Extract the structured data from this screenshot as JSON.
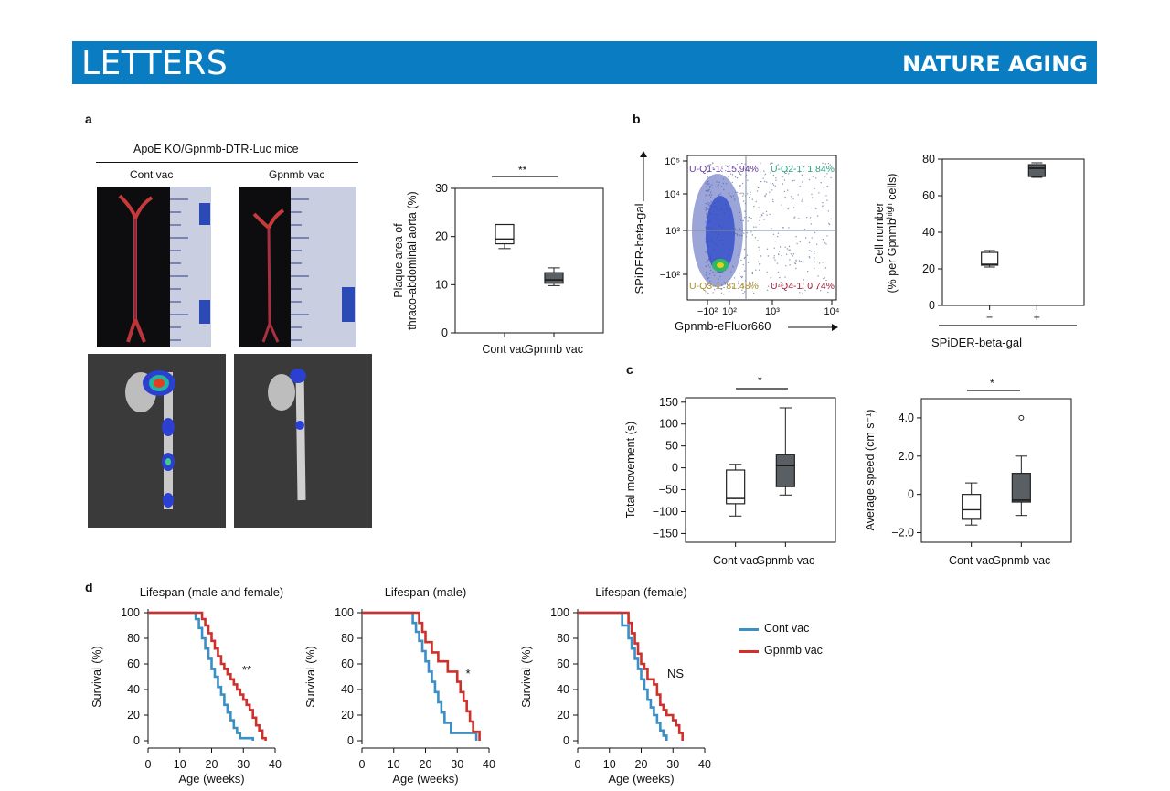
{
  "header": {
    "section": "LETTERS",
    "journal": "NATURE AGING"
  },
  "colors": {
    "banner": "#0a7cc1",
    "cont": "#3a8fc7",
    "gpnmb": "#d0302b"
  },
  "panel_a": {
    "label": "a",
    "mouse_line": "ApoE KO/Gpnmb-DTR-Luc mice",
    "col1": "Cont vac",
    "col2": "Gpnmb vac"
  },
  "panel_b": {
    "label": "b"
  },
  "panel_c": {
    "label": "c"
  },
  "panel_d": {
    "label": "d"
  },
  "chart_data": [
    {
      "id": "plaque",
      "type": "box",
      "ylabel_line1": "Plaque area of",
      "ylabel_line2": "thraco-abdominal aorta (%)",
      "ylim": [
        0,
        30
      ],
      "yticks": [
        0,
        10,
        20,
        30
      ],
      "categories": [
        "Cont vac",
        "Gpnmb vac"
      ],
      "boxes": [
        {
          "min": 17.5,
          "q1": 18.5,
          "median": 19.5,
          "q3": 22.5,
          "max": 22.5,
          "fill": "#ffffff"
        },
        {
          "min": 9.8,
          "q1": 10.3,
          "median": 11.0,
          "q3": 12.5,
          "max": 13.5,
          "fill": "#5a5f64"
        }
      ],
      "significance": "**"
    },
    {
      "id": "flow",
      "type": "scatter",
      "xlabel": "Gpnmb-eFluor660",
      "ylabel": "SPiDER-beta-gal",
      "xticks": [
        "−10²",
        "10²",
        "10³",
        "10⁴"
      ],
      "yticks": [
        "−10²",
        "10³",
        "10⁴",
        "10⁵"
      ],
      "quadrants": [
        {
          "name": "U-Q1-1",
          "value": "15.94%",
          "label": "U-Q1-1: 15.94%",
          "color": "#6a3fa0"
        },
        {
          "name": "U-Q2-1",
          "value": "1.84%",
          "label": "U-Q2-1: 1.84%",
          "color": "#2e9e7a"
        },
        {
          "name": "U-Q3-1",
          "value": "81.48%",
          "label": "U-Q3-1: 81.48%",
          "color": "#b0902a"
        },
        {
          "name": "U-Q4-1",
          "value": "0.74%",
          "label": "U-Q4-1: 0.74%",
          "color": "#a0203a"
        }
      ]
    },
    {
      "id": "cellnumber",
      "type": "box",
      "ylabel_line1": "Cell number",
      "ylabel_line2": "(% per Gpnmb",
      "ylabel_sup": "high",
      "ylabel_line2_end": " cells)",
      "ylim": [
        0,
        80
      ],
      "yticks": [
        0,
        20,
        40,
        60,
        80
      ],
      "categories": [
        "−",
        "+"
      ],
      "xlabel": "SPiDER-beta-gal",
      "boxes": [
        {
          "min": 21,
          "q1": 22,
          "median": 22.5,
          "q3": 29,
          "max": 30,
          "fill": "#ffffff"
        },
        {
          "min": 70,
          "q1": 70.5,
          "median": 75,
          "q3": 77,
          "max": 78,
          "fill": "#5a5f64"
        }
      ]
    },
    {
      "id": "movement",
      "type": "box",
      "ylabel": "Total movement (s)",
      "ylim": [
        -170,
        160
      ],
      "yticks": [
        -150,
        -100,
        -50,
        0,
        50,
        100,
        150
      ],
      "categories": [
        "Cont vac",
        "Gpnmb vac"
      ],
      "boxes": [
        {
          "min": -110,
          "q1": -82,
          "median": -70,
          "q3": -5,
          "max": 8,
          "fill": "#ffffff"
        },
        {
          "min": -62,
          "q1": -43,
          "median": 5,
          "q3": 30,
          "max": 137,
          "fill": "#5a5f64"
        }
      ],
      "significance": "*"
    },
    {
      "id": "speed",
      "type": "box",
      "ylabel": "Average speed (cm s⁻¹)",
      "ylim": [
        -2.5,
        5.0
      ],
      "yticks": [
        -2.0,
        0,
        2.0,
        4.0
      ],
      "ytick_labels": [
        "−2.0",
        "0",
        "2.0",
        "4.0"
      ],
      "categories": [
        "Cont vac",
        "Gpnmb vac"
      ],
      "boxes": [
        {
          "min": -1.6,
          "q1": -1.3,
          "median": -0.8,
          "q3": 0.0,
          "max": 0.6,
          "fill": "#ffffff"
        },
        {
          "min": -1.1,
          "q1": -0.4,
          "median": -0.3,
          "q3": 1.1,
          "max": 2.0,
          "outlier": 4.0,
          "fill": "#5a5f64"
        }
      ],
      "significance": "*"
    },
    {
      "id": "lifespan_all",
      "type": "line",
      "title": "Lifespan (male and female)",
      "xlabel": "Age (weeks)",
      "ylabel": "Survival (%)",
      "xlim": [
        0,
        40
      ],
      "ylim": [
        0,
        100
      ],
      "xticks": [
        0,
        10,
        20,
        30,
        40
      ],
      "yticks": [
        0,
        20,
        40,
        60,
        80,
        100
      ],
      "annotation": "**",
      "series": [
        {
          "name": "Cont vac",
          "x": [
            0,
            12,
            15,
            16,
            17,
            18,
            19,
            20,
            21,
            22,
            23,
            24,
            25,
            26,
            27,
            28,
            29,
            30,
            31,
            32,
            33
          ],
          "y": [
            100,
            100,
            95,
            88,
            80,
            72,
            64,
            56,
            50,
            42,
            36,
            28,
            22,
            16,
            10,
            6,
            2,
            2,
            2,
            2,
            0
          ]
        },
        {
          "name": "Gpnmb vac",
          "x": [
            0,
            15,
            17,
            18,
            19,
            20,
            21,
            22,
            23,
            24,
            25,
            26,
            27,
            28,
            29,
            30,
            31,
            32,
            33,
            34,
            35,
            36,
            37
          ],
          "y": [
            100,
            100,
            95,
            90,
            84,
            78,
            72,
            66,
            60,
            56,
            52,
            48,
            44,
            40,
            36,
            32,
            28,
            24,
            18,
            12,
            8,
            2,
            0
          ]
        }
      ]
    },
    {
      "id": "lifespan_male",
      "type": "line",
      "title": "Lifespan (male)",
      "xlabel": "Age (weeks)",
      "ylabel": "Survival (%)",
      "xlim": [
        0,
        40
      ],
      "ylim": [
        0,
        100
      ],
      "xticks": [
        0,
        10,
        20,
        30,
        40
      ],
      "yticks": [
        0,
        20,
        40,
        60,
        80,
        100
      ],
      "annotation": "*",
      "series": [
        {
          "name": "Cont vac",
          "x": [
            0,
            15,
            16,
            17,
            18,
            19,
            20,
            21,
            22,
            23,
            24,
            25,
            26,
            28,
            35,
            36
          ],
          "y": [
            100,
            100,
            92,
            85,
            78,
            70,
            62,
            54,
            46,
            38,
            30,
            22,
            14,
            6,
            6,
            0
          ]
        },
        {
          "name": "Gpnmb vac",
          "x": [
            0,
            17,
            18,
            19,
            20,
            22,
            24,
            27,
            29,
            30,
            31,
            32,
            33,
            34,
            35,
            37
          ],
          "y": [
            100,
            100,
            92,
            85,
            77,
            69,
            62,
            54,
            54,
            46,
            38,
            31,
            23,
            15,
            7,
            0
          ]
        }
      ]
    },
    {
      "id": "lifespan_female",
      "type": "line",
      "title": "Lifespan (female)",
      "xlabel": "Age (weeks)",
      "ylabel": "Survival (%)",
      "xlim": [
        0,
        40
      ],
      "ylim": [
        0,
        100
      ],
      "xticks": [
        0,
        10,
        20,
        30,
        40
      ],
      "yticks": [
        0,
        20,
        40,
        60,
        80,
        100
      ],
      "annotation": "NS",
      "series": [
        {
          "name": "Cont vac",
          "x": [
            0,
            12,
            14,
            16,
            17,
            18,
            19,
            20,
            21,
            22,
            23,
            24,
            25,
            26,
            27,
            28
          ],
          "y": [
            100,
            100,
            90,
            80,
            72,
            64,
            56,
            48,
            40,
            32,
            26,
            20,
            14,
            8,
            4,
            0
          ]
        },
        {
          "name": "Gpnmb vac",
          "x": [
            0,
            14,
            16,
            17,
            18,
            19,
            20,
            21,
            22,
            24,
            25,
            26,
            27,
            28,
            30,
            31,
            32,
            33
          ],
          "y": [
            100,
            100,
            92,
            84,
            76,
            68,
            60,
            56,
            48,
            44,
            36,
            28,
            24,
            20,
            16,
            12,
            6,
            0
          ]
        }
      ]
    }
  ]
}
